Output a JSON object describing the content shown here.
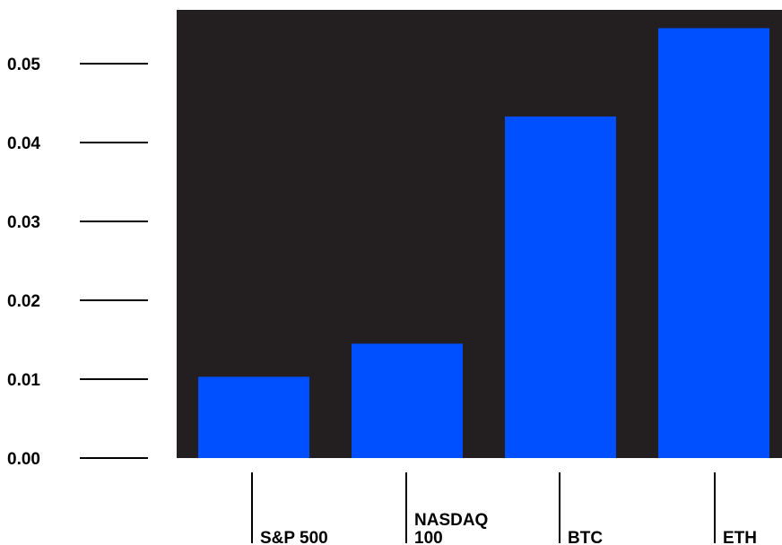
{
  "chart_data": {
    "type": "bar",
    "title": "",
    "xlabel": "",
    "ylabel": "",
    "categories": [
      [
        "S&P 500"
      ],
      [
        "NASDAQ",
        "100"
      ],
      [
        "BTC"
      ],
      [
        "ETH"
      ]
    ],
    "values": [
      0.0103,
      0.0145,
      0.0433,
      0.0545
    ],
    "ylim": [
      0,
      0.057
    ],
    "yticks": [
      "0.00",
      "0.01",
      "0.02",
      "0.03",
      "0.04",
      "0.05"
    ],
    "grid": false,
    "legend": "none",
    "colors": {
      "bar": "#0050ff",
      "plot_background": "#231f20",
      "tick": "#000000"
    }
  }
}
